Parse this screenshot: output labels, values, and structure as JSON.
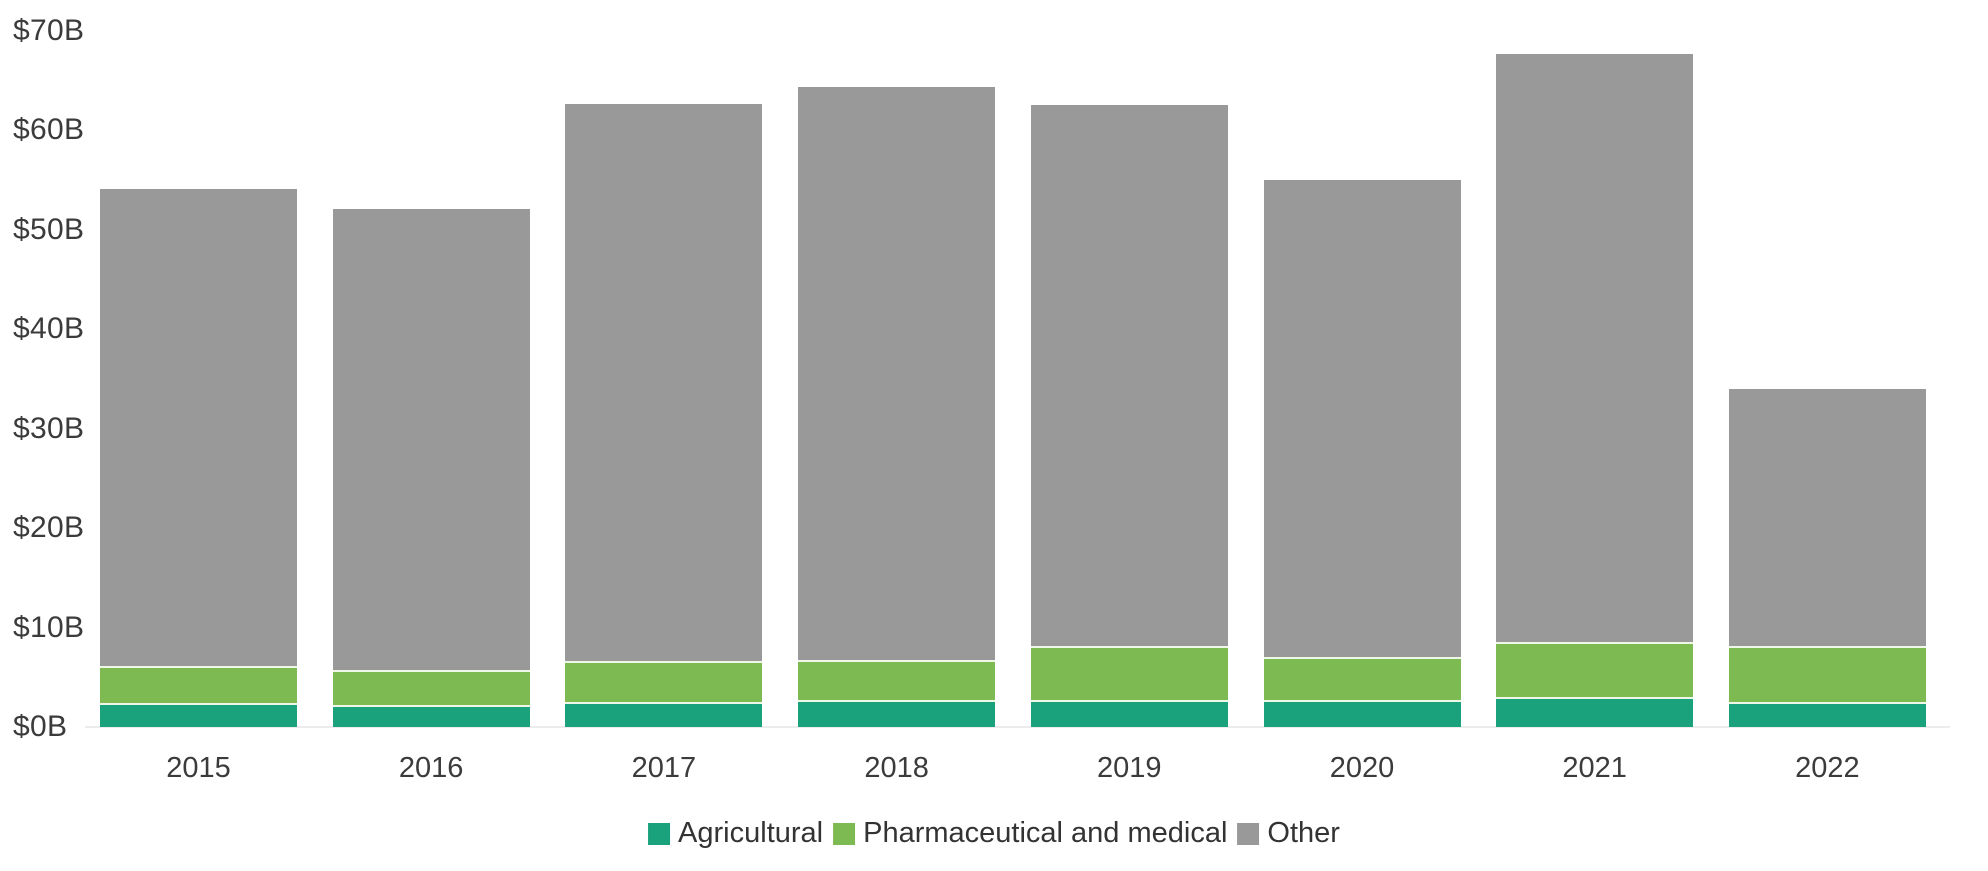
{
  "chart_data": {
    "type": "bar",
    "stacked": true,
    "title": "",
    "xlabel": "",
    "ylabel": "",
    "categories": [
      "2015",
      "2016",
      "2017",
      "2018",
      "2019",
      "2020",
      "2021",
      "2022"
    ],
    "series": [
      {
        "name": "Agricultural",
        "color": "#19a27b",
        "values": [
          2.4,
          2.2,
          2.5,
          2.7,
          2.7,
          2.7,
          3.0,
          2.5
        ]
      },
      {
        "name": "Pharmaceutical and medical",
        "color": "#7eba52",
        "values": [
          3.7,
          3.5,
          4.1,
          4.0,
          5.4,
          4.3,
          5.5,
          5.6
        ]
      },
      {
        "name": "Other",
        "color": "#999999",
        "values": [
          48.0,
          46.4,
          56.0,
          57.6,
          54.4,
          48.0,
          59.1,
          25.9
        ]
      }
    ],
    "totals": [
      54.1,
      52.1,
      62.6,
      64.3,
      62.5,
      55.0,
      67.6,
      34.0
    ],
    "y_axis": {
      "ticks": [
        {
          "value": 0,
          "label": "$0B"
        },
        {
          "value": 10,
          "label": "$10B"
        },
        {
          "value": 20,
          "label": "$20B"
        },
        {
          "value": 30,
          "label": "$30B"
        },
        {
          "value": 40,
          "label": "$40B"
        },
        {
          "value": 50,
          "label": "$50B"
        },
        {
          "value": 60,
          "label": "$60B"
        },
        {
          "value": 70,
          "label": "$70B"
        }
      ],
      "ylim": [
        0,
        70
      ]
    },
    "legend_position": "bottom-center",
    "grid": false,
    "colors": {
      "text": "#3b3b3b",
      "baseline": "#ececec",
      "segment_separator": "#eff7e9",
      "background": "#ffffff"
    }
  }
}
